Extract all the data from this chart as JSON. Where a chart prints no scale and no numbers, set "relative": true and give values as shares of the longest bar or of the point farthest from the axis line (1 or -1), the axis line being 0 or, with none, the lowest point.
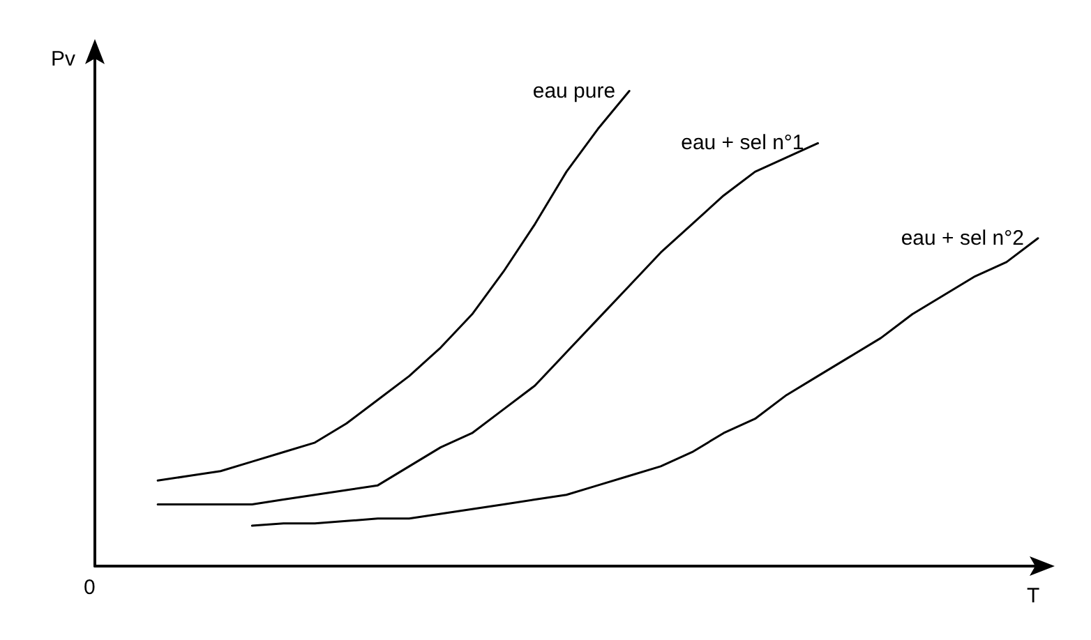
{
  "chart_data": {
    "type": "line",
    "relative": true,
    "xlabel": "T",
    "ylabel": "Pv",
    "annotations": [
      "0"
    ],
    "grid": false,
    "legend": false,
    "marker": "none",
    "line_style": "solid",
    "categories": [
      null,
      null,
      null,
      null,
      null,
      null,
      null,
      null,
      null,
      null,
      null,
      null,
      null,
      null,
      null,
      null,
      null,
      null,
      null,
      null,
      null,
      null,
      null,
      null,
      null,
      null,
      null,
      null,
      null,
      null,
      null
    ],
    "series": [
      {
        "name": "eau pure",
        "color": "#000000",
        "values": [
          null,
          null,
          0.18,
          0.19,
          0.2,
          0.22,
          0.24,
          0.26,
          0.3,
          0.35,
          0.4,
          0.46,
          0.53,
          0.62,
          0.72,
          0.83,
          0.92,
          1.0,
          null,
          null,
          null,
          null,
          null,
          null,
          null,
          null,
          null,
          null,
          null,
          null,
          null
        ]
      },
      {
        "name": "eau + sel n°1",
        "color": "#000000",
        "values": [
          null,
          null,
          0.13,
          0.13,
          0.13,
          0.13,
          0.14,
          0.15,
          0.16,
          0.17,
          0.21,
          0.25,
          0.28,
          0.33,
          0.38,
          0.45,
          0.52,
          0.59,
          0.66,
          0.72,
          0.78,
          0.83,
          0.86,
          0.89,
          null,
          null,
          null,
          null,
          null,
          null,
          null
        ]
      },
      {
        "name": "eau + sel n°2",
        "color": "#000000",
        "values": [
          null,
          null,
          null,
          null,
          null,
          0.085,
          0.09,
          0.09,
          0.095,
          0.1,
          0.1,
          0.11,
          0.12,
          0.13,
          0.14,
          0.15,
          0.17,
          0.19,
          0.21,
          0.24,
          0.28,
          0.31,
          0.36,
          0.4,
          0.44,
          0.48,
          0.53,
          0.57,
          0.61,
          0.64,
          0.69
        ]
      }
    ]
  }
}
